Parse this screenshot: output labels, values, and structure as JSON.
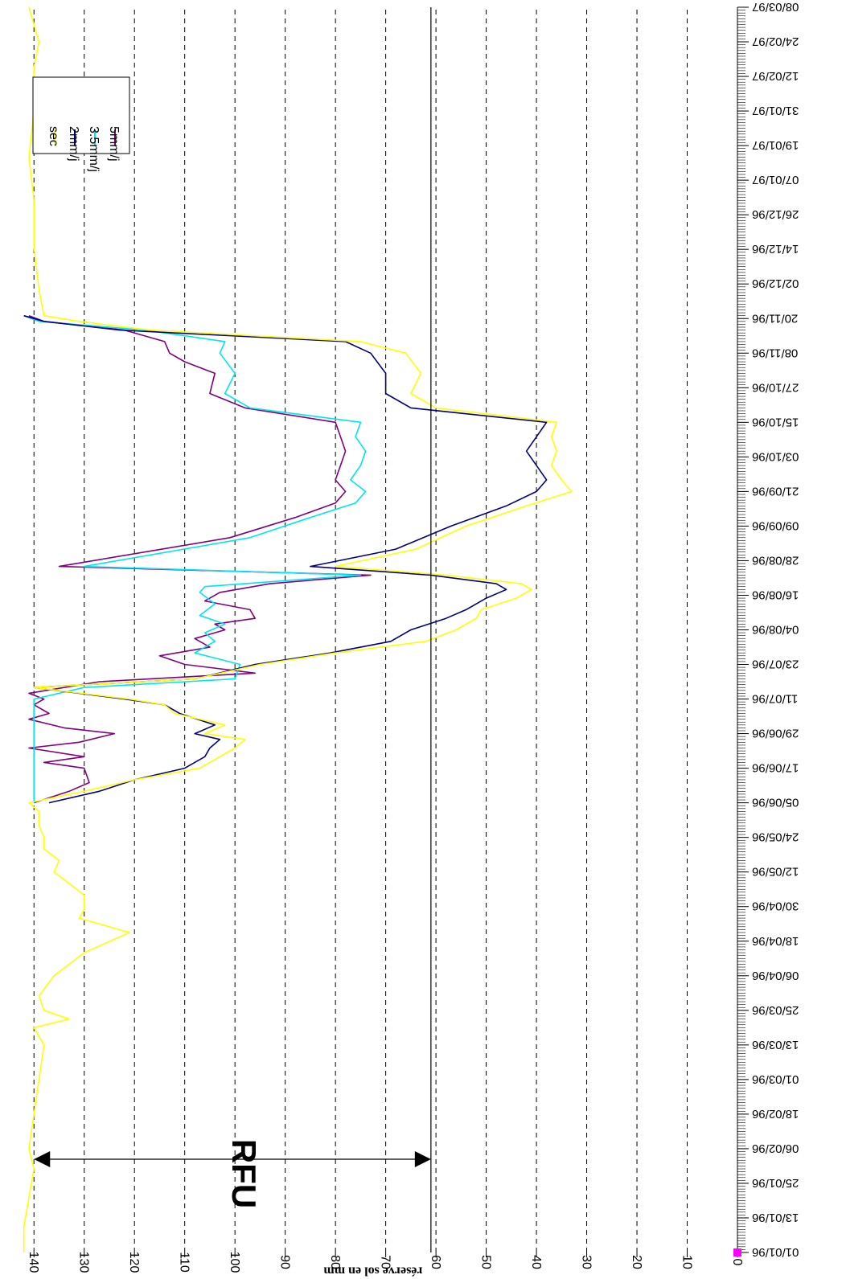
{
  "chart_data": {
    "type": "line",
    "title": "",
    "ylabel": "réserve sol en mm",
    "xlabel": "",
    "ylim": [
      0,
      145
    ],
    "yticks": [
      0,
      10,
      20,
      30,
      40,
      50,
      60,
      70,
      80,
      90,
      100,
      110,
      120,
      130,
      140
    ],
    "grid": "dashed horizontal at each y tick",
    "x_start": "01/01/96",
    "x_tick_labels": [
      "01/01/96",
      "13/01/96",
      "25/01/96",
      "06/02/96",
      "18/02/96",
      "01/03/96",
      "13/03/96",
      "25/03/96",
      "06/04/96",
      "18/04/96",
      "30/04/96",
      "12/05/96",
      "24/05/96",
      "05/06/96",
      "17/06/96",
      "29/06/96",
      "11/07/96",
      "23/07/96",
      "04/08/96",
      "16/08/96",
      "28/08/96",
      "09/09/96",
      "21/09/96",
      "03/10/96",
      "15/10/96",
      "27/10/96",
      "08/11/96",
      "20/11/96",
      "02/12/96",
      "14/12/96",
      "26/12/96",
      "07/01/97",
      "19/01/97",
      "31/01/97",
      "12/02/97",
      "24/02/97",
      "08/03/97"
    ],
    "rfu": {
      "label": "RFU",
      "from": 140,
      "to": 61
    },
    "reference_line": 61,
    "legend": {
      "placement": "top-right",
      "entries": [
        "5mm/j",
        "3.5mm/j",
        "2mm/j",
        "sec"
      ]
    },
    "series": [
      {
        "name": "5mm/j",
        "color": "#800080",
        "points": [
          [
            "05/06/96",
            140
          ],
          [
            "09/06/96",
            133
          ],
          [
            "12/06/96",
            129
          ],
          [
            "17/06/96",
            130
          ],
          [
            "19/06/96",
            138
          ],
          [
            "21/06/96",
            130
          ],
          [
            "24/06/96",
            141
          ],
          [
            "26/06/96",
            131
          ],
          [
            "29/06/96",
            124
          ],
          [
            "01/07/96",
            134
          ],
          [
            "04/07/96",
            141
          ],
          [
            "06/07/96",
            137
          ],
          [
            "09/07/96",
            140
          ],
          [
            "11/07/96",
            138
          ],
          [
            "13/07/96",
            141
          ],
          [
            "17/07/96",
            127
          ],
          [
            "20/07/96",
            96
          ],
          [
            "23/07/96",
            110
          ],
          [
            "26/07/96",
            115
          ],
          [
            "29/07/96",
            105
          ],
          [
            "01/08/96",
            108
          ],
          [
            "04/08/96",
            102
          ],
          [
            "06/08/96",
            104
          ],
          [
            "08/08/96",
            96
          ],
          [
            "11/08/96",
            97
          ],
          [
            "14/08/96",
            106
          ],
          [
            "17/08/96",
            103
          ],
          [
            "20/08/96",
            93
          ],
          [
            "23/08/96",
            73
          ],
          [
            "26/08/96",
            135
          ],
          [
            "05/09/96",
            101
          ],
          [
            "12/09/96",
            88
          ],
          [
            "17/09/96",
            80
          ],
          [
            "21/09/96",
            78
          ],
          [
            "25/09/96",
            80
          ],
          [
            "30/09/96",
            79
          ],
          [
            "05/10/96",
            78
          ],
          [
            "10/10/96",
            79
          ],
          [
            "15/10/96",
            80
          ],
          [
            "20/10/96",
            98
          ],
          [
            "25/10/96",
            105
          ],
          [
            "01/11/96",
            104
          ],
          [
            "05/11/96",
            110
          ],
          [
            "08/11/96",
            113
          ],
          [
            "12/11/96",
            114
          ],
          [
            "16/11/96",
            122
          ],
          [
            "19/11/96",
            138
          ],
          [
            "21/11/96",
            141
          ]
        ]
      },
      {
        "name": "3.5mm/j",
        "color": "#00e5ee",
        "points": [
          [
            "05/06/96",
            140
          ],
          [
            "11/07/96",
            140
          ],
          [
            "15/07/96",
            130
          ],
          [
            "18/07/96",
            100
          ],
          [
            "23/07/96",
            99
          ],
          [
            "27/07/96",
            108
          ],
          [
            "31/07/96",
            104
          ],
          [
            "03/08/96",
            106
          ],
          [
            "06/08/96",
            102
          ],
          [
            "09/08/96",
            107
          ],
          [
            "13/08/96",
            104
          ],
          [
            "17/08/96",
            107
          ],
          [
            "19/08/96",
            106
          ],
          [
            "23/08/96",
            75
          ],
          [
            "26/08/96",
            130
          ],
          [
            "05/09/96",
            97
          ],
          [
            "12/09/96",
            85
          ],
          [
            "17/09/96",
            76
          ],
          [
            "21/09/96",
            74
          ],
          [
            "25/09/96",
            77
          ],
          [
            "30/09/96",
            75
          ],
          [
            "05/10/96",
            74
          ],
          [
            "10/10/96",
            76
          ],
          [
            "15/10/96",
            75
          ],
          [
            "20/10/96",
            97
          ],
          [
            "25/10/96",
            102
          ],
          [
            "01/11/96",
            100
          ],
          [
            "08/11/96",
            103
          ],
          [
            "12/11/96",
            102
          ],
          [
            "16/11/96",
            118
          ],
          [
            "19/11/96",
            139
          ],
          [
            "21/11/96",
            142
          ]
        ]
      },
      {
        "name": "2mm/j",
        "color": "#000080",
        "points": [
          [
            "05/06/96",
            137
          ],
          [
            "09/06/96",
            127
          ],
          [
            "13/06/96",
            120
          ],
          [
            "17/06/96",
            110
          ],
          [
            "21/06/96",
            106
          ],
          [
            "24/06/96",
            105
          ],
          [
            "27/06/96",
            103
          ],
          [
            "29/06/96",
            108
          ],
          [
            "02/07/96",
            104
          ],
          [
            "06/07/96",
            111
          ],
          [
            "09/07/96",
            114
          ],
          [
            "11/07/96",
            122
          ],
          [
            "15/07/96",
            140
          ],
          [
            "18/07/96",
            108
          ],
          [
            "23/07/96",
            96
          ],
          [
            "27/07/96",
            81
          ],
          [
            "31/07/96",
            69
          ],
          [
            "04/08/96",
            65
          ],
          [
            "08/08/96",
            58
          ],
          [
            "11/08/96",
            54
          ],
          [
            "15/08/96",
            50
          ],
          [
            "18/08/96",
            46
          ],
          [
            "20/08/96",
            48
          ],
          [
            "23/08/96",
            61
          ],
          [
            "26/08/96",
            85
          ],
          [
            "01/09/96",
            68
          ],
          [
            "09/09/96",
            57
          ],
          [
            "16/09/96",
            46
          ],
          [
            "21/09/96",
            40
          ],
          [
            "25/09/96",
            38
          ],
          [
            "30/09/96",
            40
          ],
          [
            "05/10/96",
            42
          ],
          [
            "10/10/96",
            40
          ],
          [
            "15/10/96",
            38
          ],
          [
            "20/10/96",
            65
          ],
          [
            "25/10/96",
            70
          ],
          [
            "01/11/96",
            70
          ],
          [
            "08/11/96",
            73
          ],
          [
            "12/11/96",
            78
          ],
          [
            "16/11/96",
            123
          ],
          [
            "19/11/96",
            138
          ],
          [
            "21/11/96",
            142
          ]
        ]
      },
      {
        "name": "sec",
        "color": "#ffff00",
        "points": [
          [
            "01/01/96",
            142
          ],
          [
            "10/01/96",
            142
          ],
          [
            "20/01/96",
            141
          ],
          [
            "30/01/96",
            140
          ],
          [
            "06/02/96",
            141
          ],
          [
            "18/02/96",
            140
          ],
          [
            "01/03/96",
            139
          ],
          [
            "13/03/96",
            138
          ],
          [
            "19/03/96",
            140
          ],
          [
            "22/03/96",
            133
          ],
          [
            "25/03/96",
            138
          ],
          [
            "30/03/96",
            139
          ],
          [
            "06/04/96",
            136
          ],
          [
            "14/04/96",
            130
          ],
          [
            "21/04/96",
            121
          ],
          [
            "26/04/96",
            131
          ],
          [
            "29/04/96",
            130
          ],
          [
            "04/05/96",
            130
          ],
          [
            "08/05/96",
            133
          ],
          [
            "12/05/96",
            136
          ],
          [
            "16/05/96",
            135
          ],
          [
            "20/05/96",
            138
          ],
          [
            "24/05/96",
            138
          ],
          [
            "28/05/96",
            139
          ],
          [
            "02/06/96",
            139
          ],
          [
            "05/06/96",
            141
          ],
          [
            "09/06/96",
            130
          ],
          [
            "13/06/96",
            120
          ],
          [
            "17/06/96",
            107
          ],
          [
            "21/06/96",
            103
          ],
          [
            "24/06/96",
            100
          ],
          [
            "27/06/96",
            98
          ],
          [
            "29/06/96",
            106
          ],
          [
            "02/07/96",
            102
          ],
          [
            "06/07/96",
            112
          ],
          [
            "09/07/96",
            114
          ],
          [
            "11/07/96",
            121
          ],
          [
            "15/07/96",
            140
          ],
          [
            "18/07/96",
            108
          ],
          [
            "23/07/96",
            95
          ],
          [
            "27/07/96",
            80
          ],
          [
            "31/07/96",
            62
          ],
          [
            "04/08/96",
            56
          ],
          [
            "08/08/96",
            52
          ],
          [
            "11/08/96",
            51
          ],
          [
            "15/08/96",
            44
          ],
          [
            "18/08/96",
            41
          ],
          [
            "20/08/96",
            43
          ],
          [
            "23/08/96",
            58
          ],
          [
            "26/08/96",
            80
          ],
          [
            "01/09/96",
            64
          ],
          [
            "09/09/96",
            54
          ],
          [
            "16/09/96",
            42
          ],
          [
            "21/09/96",
            33
          ],
          [
            "25/09/96",
            35
          ],
          [
            "30/09/96",
            37
          ],
          [
            "05/10/96",
            36
          ],
          [
            "10/10/96",
            37
          ],
          [
            "15/10/96",
            36
          ],
          [
            "20/10/96",
            60
          ],
          [
            "25/10/96",
            65
          ],
          [
            "01/11/96",
            63
          ],
          [
            "08/11/96",
            66
          ],
          [
            "12/11/96",
            75
          ],
          [
            "16/11/96",
            117
          ],
          [
            "19/11/96",
            131
          ],
          [
            "21/11/96",
            138
          ],
          [
            "30/11/96",
            139
          ],
          [
            "15/12/96",
            140
          ],
          [
            "31/12/96",
            140
          ],
          [
            "15/01/97",
            141
          ],
          [
            "31/01/97",
            140
          ],
          [
            "15/02/97",
            140
          ],
          [
            "24/02/97",
            139
          ],
          [
            "08/03/97",
            141
          ]
        ]
      }
    ]
  }
}
